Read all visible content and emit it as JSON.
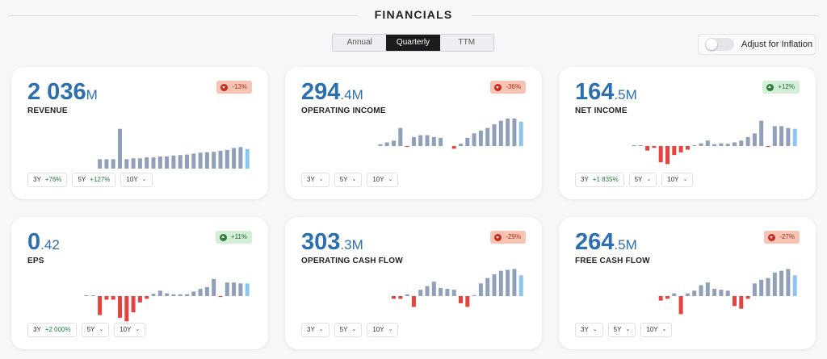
{
  "header": {
    "title": "FINANCIALS"
  },
  "period_tabs": [
    {
      "label": "Annual",
      "active": false
    },
    {
      "label": "Quarterly",
      "active": true
    },
    {
      "label": "TTM",
      "active": false
    }
  ],
  "inflation_toggle": {
    "label": "Adjust for Inflation",
    "on": false
  },
  "colors": {
    "accent": "#2b6fb0",
    "bar_positive": "#8fa0b8",
    "bar_latest": "#8cc6f0",
    "bar_negative": "#e8423e"
  },
  "cards": [
    {
      "main": "2 036",
      "decimals": "",
      "unit": "M",
      "label": "REVENUE",
      "change": "-13%",
      "change_dir": "neg",
      "buttons": [
        {
          "label": "3Y",
          "value": "+76%"
        },
        {
          "label": "5Y",
          "value": "+127%"
        },
        {
          "label": "10Y",
          "value": ""
        }
      ],
      "chart_data": {
        "type": "bar",
        "values": [
          0.2,
          0.2,
          0.2,
          0.85,
          0.2,
          0.22,
          0.22,
          0.24,
          0.24,
          0.26,
          0.26,
          0.28,
          0.29,
          0.3,
          0.32,
          0.34,
          0.35,
          0.36,
          0.38,
          0.4,
          0.44,
          0.46,
          0.42
        ]
      }
    },
    {
      "main": "294",
      "decimals": ".4",
      "unit": "M",
      "label": "OPERATING INCOME",
      "change": "-36%",
      "change_dir": "neg",
      "buttons": [
        {
          "label": "3Y",
          "value": ""
        },
        {
          "label": "5Y",
          "value": ""
        },
        {
          "label": "10Y",
          "value": ""
        }
      ],
      "chart_data": {
        "type": "bar",
        "values": [
          0.04,
          0.08,
          0.12,
          0.4,
          -0.02,
          0.2,
          0.24,
          0.24,
          0.2,
          0.18,
          null,
          -0.06,
          0.05,
          0.18,
          0.28,
          0.34,
          0.4,
          0.48,
          0.56,
          0.66,
          0.8,
          0.54
        ]
      }
    },
    {
      "main": "164",
      "decimals": ".5",
      "unit": "M",
      "label": "NET INCOME",
      "change": "+12%",
      "change_dir": "pos",
      "buttons": [
        {
          "label": "3Y",
          "value": "+1 835%"
        },
        {
          "label": "5Y",
          "value": ""
        },
        {
          "label": "10Y",
          "value": ""
        }
      ],
      "chart_data": {
        "type": "bar",
        "values": [
          0.01,
          0.01,
          -0.1,
          -0.04,
          -0.36,
          -0.4,
          -0.2,
          -0.14,
          -0.08,
          0.02,
          0.06,
          0.12,
          0.04,
          0.06,
          0.05,
          0.08,
          0.12,
          0.2,
          0.28,
          0.56,
          -0.02,
          0.44,
          0.44,
          0.4,
          0.38
        ]
      }
    },
    {
      "main": "0",
      "decimals": ".42",
      "unit": "",
      "label": "EPS",
      "change": "+11%",
      "change_dir": "pos",
      "buttons": [
        {
          "label": "3Y",
          "value": "+2 000%"
        },
        {
          "label": "5Y",
          "value": ""
        },
        {
          "label": "10Y",
          "value": ""
        }
      ],
      "chart_data": {
        "type": "bar",
        "values": [
          0.01,
          0.02,
          -0.42,
          -0.08,
          -0.08,
          -0.48,
          -0.56,
          -0.36,
          -0.14,
          -0.06,
          0.05,
          0.12,
          0.06,
          0.04,
          0.04,
          0.04,
          0.1,
          0.16,
          0.2,
          0.38,
          -0.02,
          0.3,
          0.3,
          0.28,
          0.28
        ]
      }
    },
    {
      "main": "303",
      "decimals": ".3",
      "unit": "M",
      "label": "OPERATING CASH FLOW",
      "change": "-29%",
      "change_dir": "neg",
      "buttons": [
        {
          "label": "3Y",
          "value": ""
        },
        {
          "label": "5Y",
          "value": ""
        },
        {
          "label": "10Y",
          "value": ""
        }
      ],
      "chart_data": {
        "type": "bar",
        "values": [
          -0.06,
          -0.06,
          0.04,
          -0.24,
          0.14,
          0.22,
          0.32,
          0.18,
          0.16,
          0.14,
          -0.16,
          -0.24,
          0.02,
          0.28,
          0.4,
          0.48,
          0.56,
          0.58,
          0.6,
          0.46
        ]
      }
    },
    {
      "main": "264",
      "decimals": ".5",
      "unit": "M",
      "label": "FREE CASH FLOW",
      "change": "-27%",
      "change_dir": "neg",
      "buttons": [
        {
          "label": "3Y",
          "value": ""
        },
        {
          "label": "5Y",
          "value": ""
        },
        {
          "label": "10Y",
          "value": ""
        }
      ],
      "chart_data": {
        "type": "bar",
        "values": [
          -0.1,
          -0.06,
          0.06,
          -0.4,
          0.06,
          0.12,
          0.24,
          0.3,
          0.16,
          0.14,
          0.12,
          -0.22,
          -0.28,
          -0.06,
          0.28,
          0.36,
          0.4,
          0.52,
          0.56,
          0.6,
          0.46
        ]
      }
    }
  ]
}
